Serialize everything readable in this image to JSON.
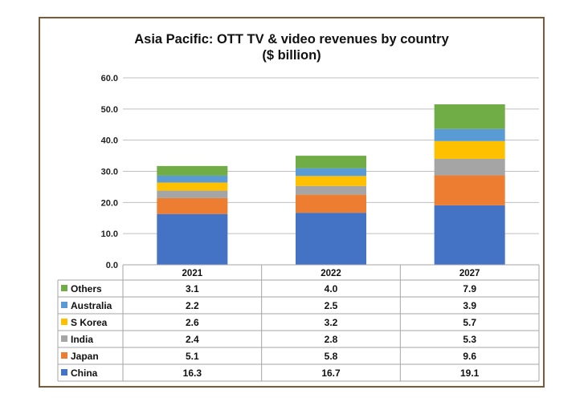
{
  "chart_data": {
    "type": "bar",
    "stacked": true,
    "title": "Asia Pacific: OTT TV & video revenues by country",
    "subtitle": "($ billion)",
    "categories": [
      "2021",
      "2022",
      "2027"
    ],
    "ylim": [
      0,
      60
    ],
    "yticks": [
      "0.0",
      "10.0",
      "20.0",
      "30.0",
      "40.0",
      "50.0",
      "60.0"
    ],
    "grid": true,
    "data_table": true,
    "series": [
      {
        "name": "China",
        "color": "#4472c4",
        "values": [
          16.3,
          16.7,
          19.1
        ],
        "labels": [
          "16.3",
          "16.7",
          "19.1"
        ]
      },
      {
        "name": "Japan",
        "color": "#ed7d31",
        "values": [
          5.1,
          5.8,
          9.6
        ],
        "labels": [
          "5.1",
          "5.8",
          "9.6"
        ]
      },
      {
        "name": "India",
        "color": "#a5a5a5",
        "values": [
          2.4,
          2.8,
          5.3
        ],
        "labels": [
          "2.4",
          "2.8",
          "5.3"
        ]
      },
      {
        "name": "S Korea",
        "color": "#ffc000",
        "values": [
          2.6,
          3.2,
          5.7
        ],
        "labels": [
          "2.6",
          "3.2",
          "5.7"
        ]
      },
      {
        "name": "Australia",
        "color": "#5b9bd5",
        "values": [
          2.2,
          2.5,
          3.9
        ],
        "labels": [
          "2.2",
          "2.5",
          "3.9"
        ]
      },
      {
        "name": "Others",
        "color": "#70ad47",
        "values": [
          3.1,
          4.0,
          7.9
        ],
        "labels": [
          "3.1",
          "4.0",
          "7.9"
        ]
      }
    ]
  }
}
